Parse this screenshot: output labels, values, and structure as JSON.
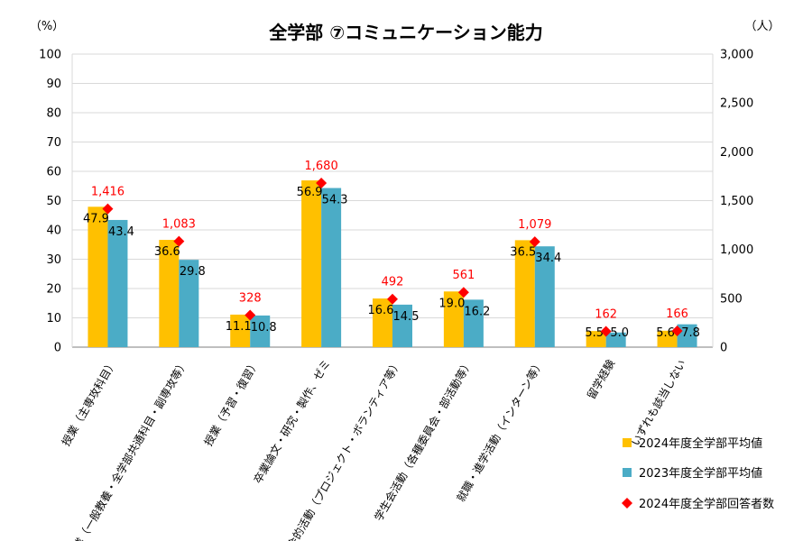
{
  "chart_data": {
    "type": "bar",
    "title": "全学部 ⑦コミュニケーション能力",
    "y_left_unit": "（%）",
    "y_right_unit": "（人）",
    "ylim_left": [
      0,
      100
    ],
    "ylim_right": [
      0,
      3000
    ],
    "left_ticks": [
      0,
      10,
      20,
      30,
      40,
      50,
      60,
      70,
      80,
      90,
      100
    ],
    "right_ticks": [
      "0",
      "500",
      "1,000",
      "1,500",
      "2,000",
      "2,500",
      "3,000"
    ],
    "right_tick_values": [
      0,
      500,
      1000,
      1500,
      2000,
      2500,
      3000
    ],
    "grid": true,
    "legend_position": "bottom-right",
    "categories": [
      "授業（主専攻科目）",
      "授業（一般教養・全学部共通科目・副専攻等）",
      "授業（予習・復習）",
      "卒業論文・研究・製作、ゼミ",
      "社会的活動（プロジェクト・ボランティア等）",
      "学生会活動（各種委員会・部活動等）",
      "就職・進学活動（インターン等）",
      "留学経験",
      "いずれも該当しない"
    ],
    "series": [
      {
        "name": "2024年度全学部平均値",
        "color": "#FFC000",
        "axis": "left",
        "values": [
          47.9,
          36.6,
          11.1,
          56.9,
          16.6,
          19.0,
          36.5,
          5.5,
          5.6
        ],
        "labels": [
          "47.9",
          "36.6",
          "11.1",
          "56.9",
          "16.6",
          "19.0",
          "36.5",
          "5.5",
          "5.6"
        ]
      },
      {
        "name": "2023年度全学部平均値",
        "color": "#4BACC6",
        "axis": "left",
        "values": [
          43.4,
          29.8,
          10.8,
          54.3,
          14.5,
          16.2,
          34.4,
          5.0,
          7.8
        ],
        "labels": [
          "43.4",
          "29.8",
          "10.8",
          "54.3",
          "14.5",
          "16.2",
          "34.4",
          "5.0",
          "7.8"
        ]
      },
      {
        "name": "2024年度全学部回答者数",
        "color": "#FF0000",
        "axis": "right",
        "marker": "diamond",
        "values": [
          1416,
          1083,
          328,
          1680,
          492,
          561,
          1079,
          162,
          166
        ],
        "labels": [
          "1,416",
          "1,083",
          "328",
          "1,680",
          "492",
          "561",
          "1,079",
          "162",
          "166"
        ]
      }
    ]
  }
}
